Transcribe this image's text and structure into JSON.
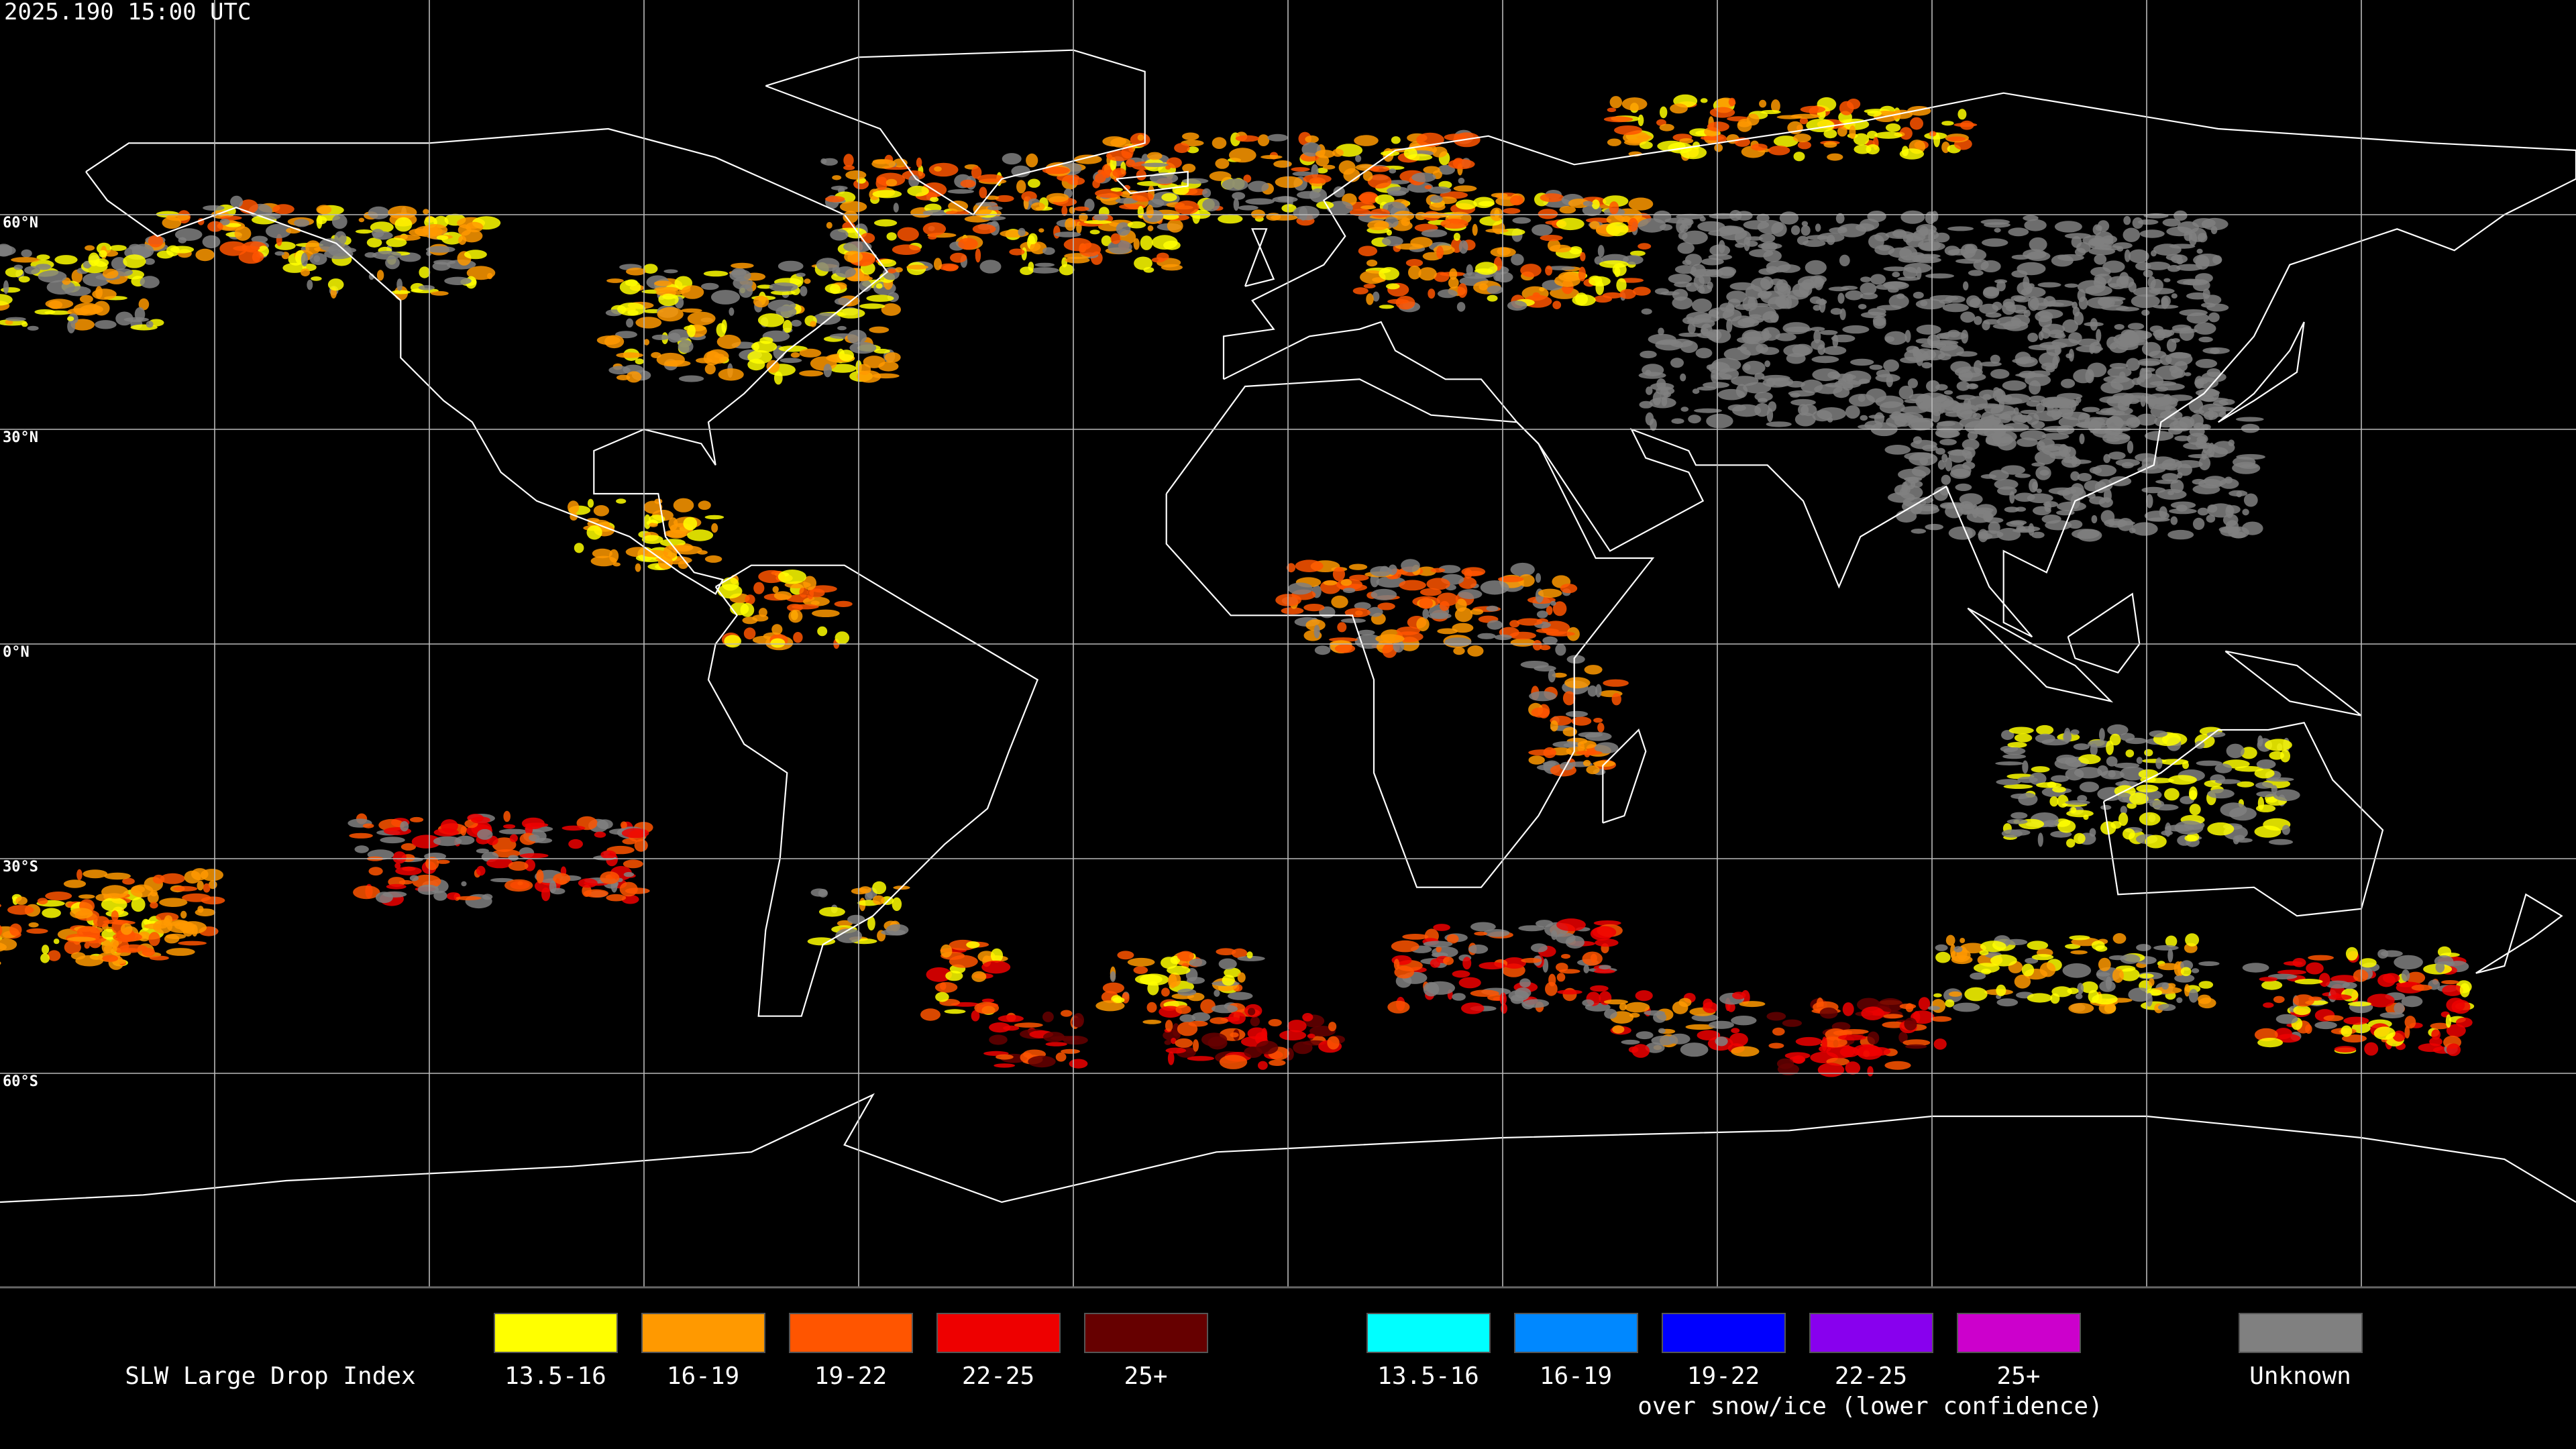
{
  "timestamp": "2025.190 15:00 UTC",
  "lat_labels": [
    "60°N",
    "30°N",
    "0°N",
    "30°S",
    "60°S"
  ],
  "legend": {
    "title": "SLW Large Drop Index",
    "normal": [
      {
        "label": "13.5-16",
        "color": "#ffff00"
      },
      {
        "label": "16-19",
        "color": "#ff9900"
      },
      {
        "label": "19-22",
        "color": "#ff5500"
      },
      {
        "label": "22-25",
        "color": "#ee0000"
      },
      {
        "label": "25+",
        "color": "#660000"
      }
    ],
    "snow_ice": [
      {
        "label": "13.5-16",
        "color": "#00ffff"
      },
      {
        "label": "16-19",
        "color": "#0088ff"
      },
      {
        "label": "19-22",
        "color": "#0000ff"
      },
      {
        "label": "22-25",
        "color": "#8800ee"
      },
      {
        "label": "25+",
        "color": "#cc00cc"
      }
    ],
    "snow_ice_note": "over snow/ice (lower confidence)",
    "unknown": {
      "label": "Unknown",
      "color": "#808080"
    }
  }
}
